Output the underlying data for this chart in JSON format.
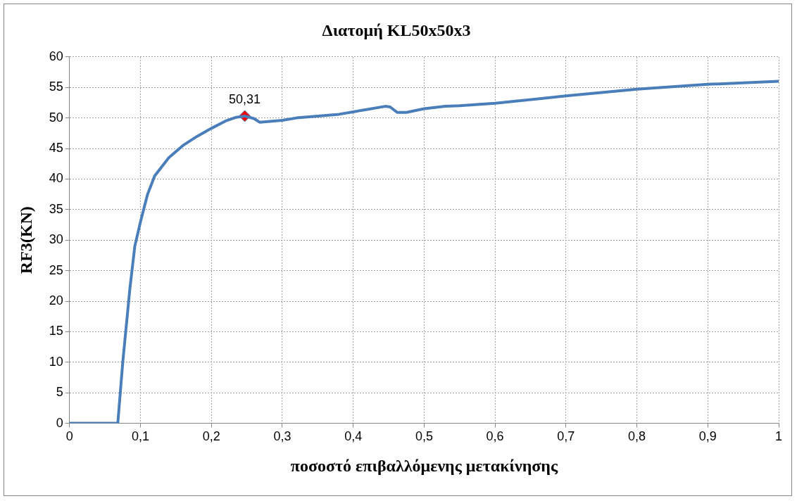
{
  "chart_data": {
    "type": "line",
    "title": "Διατομή KL50x50x3",
    "xlabel": "ποσοστό επιβαλλόμενης μετακίνησης",
    "ylabel": "RF3(KN)",
    "xlim": [
      0,
      1
    ],
    "xticks": [
      0,
      {
        "value": 0.1,
        "label": "0,1"
      },
      {
        "value": 0.2,
        "label": "0,2"
      },
      {
        "value": 0.3,
        "label": "0,3"
      },
      {
        "value": 0.4,
        "label": "0,4"
      },
      {
        "value": 0.5,
        "label": "0,5"
      },
      {
        "value": 0.6,
        "label": "0,6"
      },
      {
        "value": 0.7,
        "label": "0,7"
      },
      {
        "value": 0.8,
        "label": "0,8"
      },
      {
        "value": 0.9,
        "label": "0,9"
      },
      1
    ],
    "ylim": [
      0,
      60
    ],
    "yticks": [
      0,
      5,
      10,
      15,
      20,
      25,
      30,
      35,
      40,
      45,
      50,
      55,
      60
    ],
    "grid": true,
    "legend": false,
    "series": [
      {
        "color": "#4a7ebb",
        "marker": "none",
        "line_style": "solid",
        "x": [
          0,
          0.068,
          0.075,
          0.085,
          0.092,
          0.1,
          0.11,
          0.12,
          0.14,
          0.16,
          0.18,
          0.2,
          0.22,
          0.235,
          0.247,
          0.26,
          0.268,
          0.3,
          0.32,
          0.35,
          0.38,
          0.4,
          0.42,
          0.445,
          0.452,
          0.462,
          0.475,
          0.5,
          0.53,
          0.55,
          0.6,
          0.7,
          0.8,
          0.9,
          1
        ],
        "values": [
          0,
          0,
          10,
          22,
          29,
          33,
          37.5,
          40.5,
          43.5,
          45.5,
          47,
          48.3,
          49.5,
          50.1,
          50.31,
          49.9,
          49.3,
          49.6,
          50,
          50.3,
          50.6,
          51,
          51.4,
          51.9,
          51.8,
          50.9,
          50.9,
          51.5,
          51.9,
          52,
          52.4,
          53.6,
          54.7,
          55.5,
          56
        ]
      },
      {
        "type": "scatter",
        "color": "#ff0000",
        "marker": "diamond",
        "x": [
          0.247
        ],
        "values": [
          50.31
        ],
        "value_labels": [
          "50,31"
        ]
      }
    ]
  }
}
